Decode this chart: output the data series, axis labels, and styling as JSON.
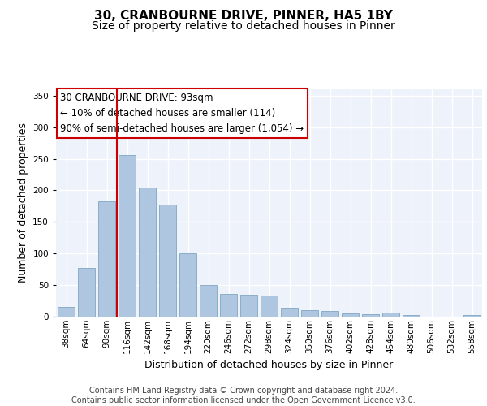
{
  "title": "30, CRANBOURNE DRIVE, PINNER, HA5 1BY",
  "subtitle": "Size of property relative to detached houses in Pinner",
  "xlabel": "Distribution of detached houses by size in Pinner",
  "ylabel": "Number of detached properties",
  "categories": [
    "38sqm",
    "64sqm",
    "90sqm",
    "116sqm",
    "142sqm",
    "168sqm",
    "194sqm",
    "220sqm",
    "246sqm",
    "272sqm",
    "298sqm",
    "324sqm",
    "350sqm",
    "376sqm",
    "402sqm",
    "428sqm",
    "454sqm",
    "480sqm",
    "506sqm",
    "532sqm",
    "558sqm"
  ],
  "values": [
    16,
    77,
    183,
    256,
    204,
    177,
    100,
    50,
    36,
    35,
    33,
    14,
    10,
    9,
    5,
    4,
    6,
    2,
    0,
    0,
    2
  ],
  "bar_color": "#aec6df",
  "bar_edge_color": "#8aaec8",
  "background_color": "#eef2fa",
  "grid_color": "#ffffff",
  "annotation_box_text": "30 CRANBOURNE DRIVE: 93sqm\n← 10% of detached houses are smaller (114)\n90% of semi-detached houses are larger (1,054) →",
  "annotation_box_color": "#cc0000",
  "vline_x_index": 2,
  "ylim": [
    0,
    360
  ],
  "yticks": [
    0,
    50,
    100,
    150,
    200,
    250,
    300,
    350
  ],
  "footer_text": "Contains HM Land Registry data © Crown copyright and database right 2024.\nContains public sector information licensed under the Open Government Licence v3.0.",
  "title_fontsize": 11,
  "subtitle_fontsize": 10,
  "xlabel_fontsize": 9,
  "ylabel_fontsize": 9,
  "tick_fontsize": 7.5,
  "annotation_fontsize": 8.5,
  "footer_fontsize": 7
}
